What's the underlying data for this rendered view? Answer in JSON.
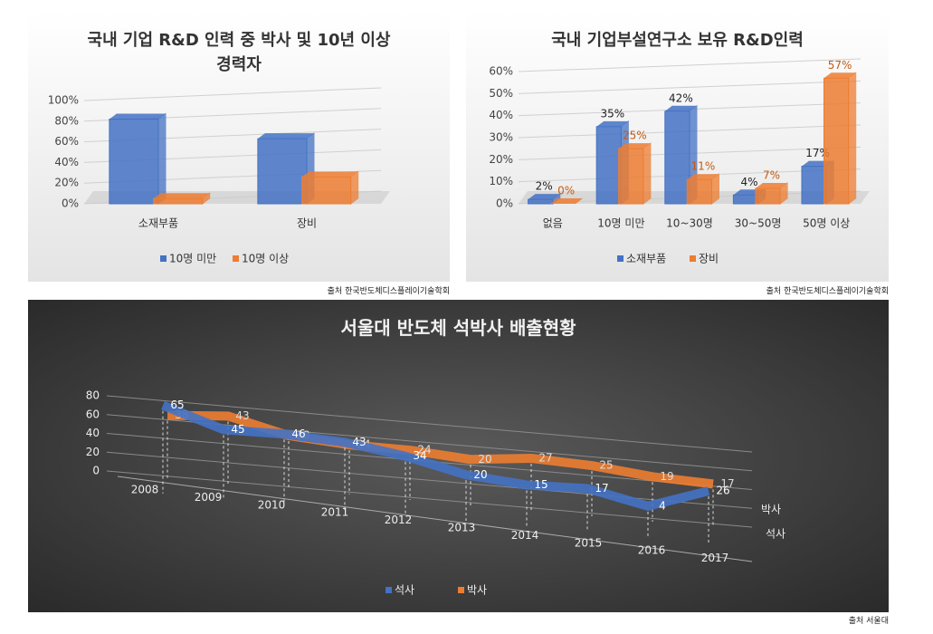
{
  "chart_data": [
    {
      "type": "bar",
      "title": "국내 기업 R&D 인력 중 박사 및 10년 이상 경력자",
      "source": "출처 한국반도체디스플레이기술학회",
      "categories": [
        "소재부품",
        "장비"
      ],
      "series": [
        {
          "name": "10명 미만",
          "color": "#4472c4",
          "values": [
            82,
            63
          ]
        },
        {
          "name": "10명 이상",
          "color": "#ed7d31",
          "values": [
            5,
            26
          ]
        }
      ],
      "ylim": [
        0,
        100
      ],
      "yticks": [
        {
          "value": 0,
          "label": "0%"
        },
        {
          "value": 20,
          "label": "20%"
        },
        {
          "value": 40,
          "label": "40%"
        },
        {
          "value": 60,
          "label": "60%"
        },
        {
          "value": 80,
          "label": "80%"
        },
        {
          "value": 100,
          "label": "100%"
        }
      ],
      "grid": true,
      "legend": "bottom"
    },
    {
      "type": "bar",
      "title": "국내 기업부설연구소 보유 R&D인력",
      "source": "출처 한국반도체디스플레이기술학회",
      "categories": [
        "없음",
        "10명 미만",
        "10~30명",
        "30~50명",
        "50명 이상"
      ],
      "series": [
        {
          "name": "소재부품",
          "color": "#4472c4",
          "values": [
            2,
            35,
            42,
            4,
            17
          ],
          "value_labels": [
            "2%",
            "35%",
            "42%",
            "4%",
            "17%"
          ]
        },
        {
          "name": "장비",
          "color": "#ed7d31",
          "values": [
            0,
            25,
            11,
            7,
            57
          ],
          "value_labels": [
            "0%",
            "25%",
            "11%",
            "7%",
            "57%"
          ]
        }
      ],
      "ylim": [
        0,
        60
      ],
      "yticks": [
        {
          "value": 0,
          "label": "0%"
        },
        {
          "value": 10,
          "label": "10%"
        },
        {
          "value": 20,
          "label": "20%"
        },
        {
          "value": 30,
          "label": "30%"
        },
        {
          "value": 40,
          "label": "40%"
        },
        {
          "value": 50,
          "label": "50%"
        },
        {
          "value": 60,
          "label": "60%"
        }
      ],
      "grid": true,
      "legend": "bottom"
    },
    {
      "type": "line",
      "title": "서울대 반도체 석박사 배출현황",
      "source": "출처 서울대",
      "categories": [
        "2008",
        "2009",
        "2010",
        "2011",
        "2012",
        "2013",
        "2014",
        "2015",
        "2016",
        "2017"
      ],
      "series": [
        {
          "name": "석사",
          "color": "#4472c4",
          "values": [
            65,
            45,
            46,
            43,
            34,
            20,
            15,
            17,
            4,
            26
          ]
        },
        {
          "name": "박사",
          "color": "#ed7d31",
          "values": [
            38,
            43,
            28,
            24,
            24,
            20,
            27,
            25,
            19,
            17
          ]
        }
      ],
      "ylim": [
        0,
        80
      ],
      "yticks": [
        0,
        20,
        40,
        60,
        80
      ],
      "grid": true,
      "legend": "bottom"
    }
  ]
}
